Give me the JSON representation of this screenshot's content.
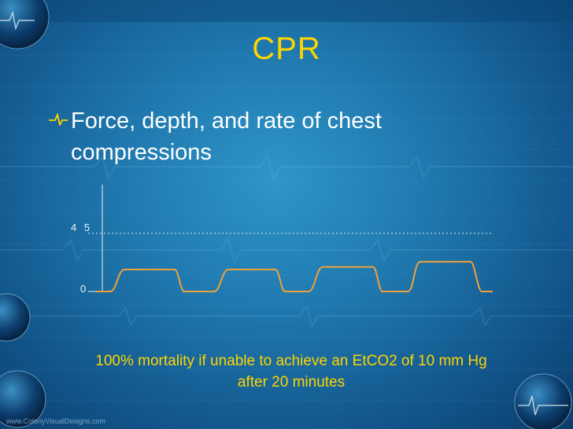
{
  "slide": {
    "title": "CPR",
    "bullet": "Force, depth, and rate of chest compressions",
    "note": "100% mortality if unable to achieve an EtCO2 of 10 mm Hg after 20 minutes",
    "watermark": "www.ColonyVisualDesigns.com"
  },
  "chart_data": {
    "type": "line",
    "title": "",
    "xlabel": "",
    "ylabel": "",
    "y_ticks": [
      "4 5",
      "0"
    ],
    "ylim": [
      0,
      45
    ],
    "series_color": "#f0a038",
    "plateaus": [
      17,
      17,
      19,
      23
    ],
    "grid": "dotted reference line at 45"
  },
  "icons": {
    "bullet": "ecg-pulse-icon"
  },
  "colors": {
    "title": "#ffd400",
    "note": "#ffd400",
    "text": "#ffffff",
    "waveform": "#f0a038"
  }
}
